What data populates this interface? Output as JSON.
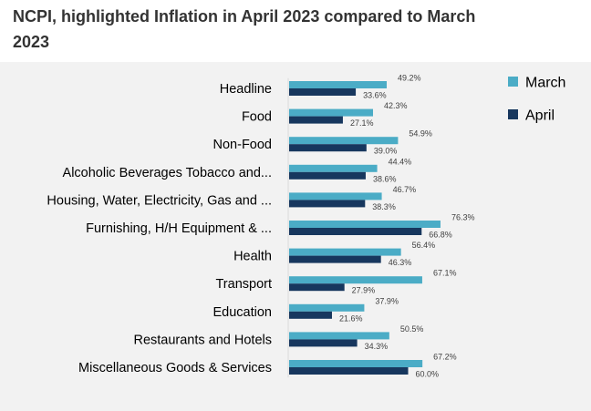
{
  "title": "NCPI, highlighted Inflation in April 2023 compared to March 2023",
  "colors": {
    "march": "#4bacc6",
    "april": "#17375e",
    "panel": "#f2f2f2"
  },
  "chart_data": {
    "type": "bar",
    "orientation": "horizontal",
    "title": "NCPI, highlighted Inflation in April 2023 compared to March 2023",
    "categories": [
      "Headline",
      "Food",
      "Non-Food",
      "Alcoholic Beverages Tobacco and...",
      "Housing, Water, Electricity, Gas and ...",
      "Furnishing, H/H Equipment & ...",
      "Health",
      "Transport",
      "Education",
      "Restaurants and Hotels",
      "Miscellaneous Goods & Services"
    ],
    "series": [
      {
        "name": "March",
        "values": [
          49.2,
          42.3,
          54.9,
          44.4,
          46.7,
          76.3,
          56.4,
          67.1,
          37.9,
          50.5,
          67.2
        ],
        "labels": [
          "49.2%",
          "42.3%",
          "54.9%",
          "44.4%",
          "46.7%",
          "76.3%",
          "56.4%",
          "67.1%",
          "37.9%",
          "50.5%",
          "67.2%"
        ]
      },
      {
        "name": "April",
        "values": [
          33.6,
          27.1,
          39.0,
          38.6,
          38.3,
          66.8,
          46.3,
          27.9,
          21.6,
          34.3,
          60.0
        ],
        "labels": [
          "33.6%",
          "27.1%",
          "39.0%",
          "38.6%",
          "38.3%",
          "66.8%",
          "46.3%",
          "27.9%",
          "21.6%",
          "34.3%",
          "60.0%"
        ]
      }
    ],
    "xlim": [
      0,
      100
    ],
    "grid": false,
    "legend_position": "top-right"
  }
}
